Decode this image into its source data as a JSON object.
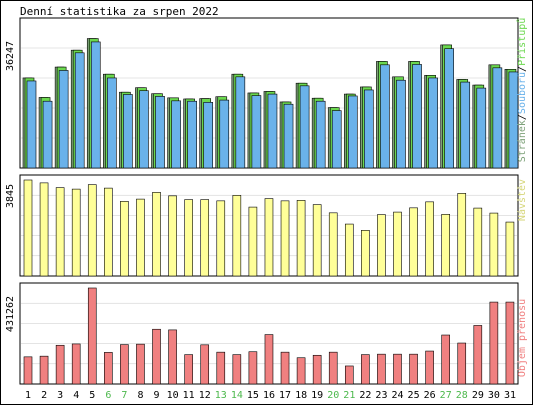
{
  "title": "Denní statistika za srpen 2022",
  "colors": {
    "background": "#ffffff",
    "frame": "#000000",
    "grid": "#c9c9c9",
    "pages": "#7ea27a",
    "files": "#6bd84f",
    "hits": "#6ab2ea",
    "visits": "#ffff99",
    "kbytes": "#f08080",
    "weekend_label": "#4cb84c",
    "weekday_label": "#0000cc"
  },
  "legend": {
    "pages": "Stránek",
    "files": "Souborů",
    "hits": "Přístupů",
    "sep": "/",
    "visits": "Návštěv",
    "kbytes": "Objem přenosu"
  },
  "axis": {
    "top_max_label": "36247",
    "mid_max_label": "3845",
    "bot_max_label": "431262"
  },
  "chart_data": [
    {
      "type": "bar",
      "title": "Denní statistika za srpen 2022",
      "categories": [
        "1",
        "2",
        "3",
        "4",
        "5",
        "6",
        "7",
        "8",
        "9",
        "10",
        "11",
        "12",
        "13",
        "14",
        "15",
        "16",
        "17",
        "18",
        "19",
        "20",
        "21",
        "22",
        "23",
        "24",
        "25",
        "26",
        "27",
        "28",
        "29",
        "30",
        "31"
      ],
      "weekend_days": [
        "6",
        "7",
        "13",
        "14",
        "20",
        "21",
        "27",
        "28"
      ],
      "ylim": [
        0,
        36247
      ],
      "series": [
        {
          "name": "Stránek",
          "values": [
            24000,
            18800,
            26900,
            31400,
            34500,
            25000,
            20200,
            21400,
            19800,
            18700,
            18400,
            18500,
            19000,
            25000,
            20000,
            20400,
            17600,
            22600,
            18600,
            16100,
            19700,
            21600,
            28400,
            24300,
            28400,
            24700,
            32800,
            23600,
            22100,
            27500,
            26300
          ]
        },
        {
          "name": "Souborů",
          "values": [
            24000,
            18800,
            26900,
            31400,
            34500,
            25000,
            20200,
            21400,
            19800,
            18700,
            18400,
            18500,
            19000,
            25000,
            20000,
            20400,
            17600,
            22600,
            18600,
            16100,
            19700,
            21600,
            28400,
            24300,
            28400,
            24700,
            32800,
            23600,
            22100,
            27500,
            26300
          ]
        },
        {
          "name": "Přístupů",
          "values": [
            23200,
            17800,
            26000,
            30700,
            33600,
            24000,
            19600,
            20600,
            19100,
            17900,
            17800,
            17500,
            18100,
            24300,
            19300,
            19700,
            17000,
            21900,
            17800,
            15300,
            19200,
            20800,
            27500,
            23400,
            27600,
            24000,
            31800,
            22900,
            21300,
            26700,
            25600
          ]
        }
      ]
    },
    {
      "type": "bar",
      "categories": [
        "1",
        "2",
        "3",
        "4",
        "5",
        "6",
        "7",
        "8",
        "9",
        "10",
        "11",
        "12",
        "13",
        "14",
        "15",
        "16",
        "17",
        "18",
        "19",
        "20",
        "21",
        "22",
        "23",
        "24",
        "25",
        "26",
        "27",
        "28",
        "29",
        "30",
        "31"
      ],
      "ylim": [
        0,
        3845
      ],
      "series": [
        {
          "name": "Návštěv",
          "values": [
            3845,
            3730,
            3540,
            3480,
            3660,
            3520,
            2990,
            3080,
            3350,
            3210,
            3060,
            3060,
            3010,
            3230,
            2760,
            3100,
            3010,
            3030,
            2860,
            2530,
            2080,
            1830,
            2460,
            2560,
            2730,
            2970,
            2470,
            3310,
            2720,
            2520,
            2160
          ]
        }
      ]
    },
    {
      "type": "bar",
      "categories": [
        "1",
        "2",
        "3",
        "4",
        "5",
        "6",
        "7",
        "8",
        "9",
        "10",
        "11",
        "12",
        "13",
        "14",
        "15",
        "16",
        "17",
        "18",
        "19",
        "20",
        "21",
        "22",
        "23",
        "24",
        "25",
        "26",
        "27",
        "28",
        "29",
        "30",
        "31"
      ],
      "ylim": [
        0,
        431262
      ],
      "series": [
        {
          "name": "Objem přenosu",
          "values": [
            122000,
            125000,
            174000,
            180000,
            431262,
            142000,
            177000,
            179000,
            246000,
            243000,
            132000,
            176000,
            143000,
            132000,
            145000,
            222000,
            143000,
            118000,
            129000,
            143000,
            81000,
            132000,
            134000,
            134000,
            134000,
            148000,
            220000,
            184000,
            263000,
            368000,
            368000
          ]
        }
      ]
    }
  ]
}
